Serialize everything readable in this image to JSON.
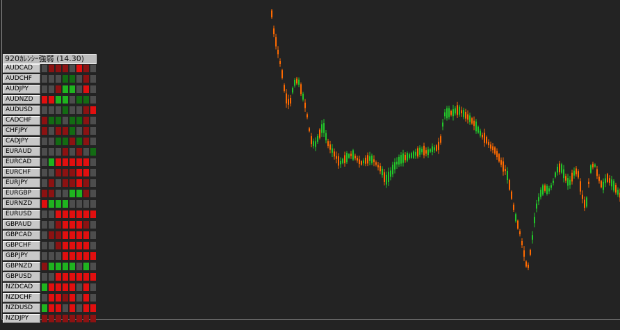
{
  "panel": {
    "title": "920ｶﾚﾝｼｰ強弱 (14.30)"
  },
  "colors": {
    "background": "#232323",
    "bullish": "#22c82a",
    "bearish": "#ff6a00",
    "cell_grey": "#4d4d4d",
    "cell_red": "#e10f0f",
    "cell_darkred": "#8c1212",
    "cell_green": "#1fb41f",
    "cell_darkgreen": "#136b13"
  },
  "strength_table": [
    {
      "pair": "AUDCAD",
      "cells": [
        "G",
        "DR",
        "DR",
        "DR",
        "G",
        "R",
        "DR",
        "G"
      ]
    },
    {
      "pair": "AUDCHF",
      "cells": [
        "G",
        "G",
        "G",
        "DG",
        "DG",
        "G",
        "DR",
        "G"
      ]
    },
    {
      "pair": "AUDJPY",
      "cells": [
        "G",
        "G",
        "DR",
        "LG",
        "LG",
        "G",
        "R",
        "G"
      ]
    },
    {
      "pair": "AUDNZD",
      "cells": [
        "R",
        "R",
        "LG",
        "LG",
        "G",
        "DG",
        "DG",
        "G"
      ]
    },
    {
      "pair": "AUDUSD",
      "cells": [
        "G",
        "G",
        "G",
        "DG",
        "G",
        "G",
        "DR",
        "R"
      ]
    },
    {
      "pair": "CADCHF",
      "cells": [
        "DR",
        "DG",
        "DG",
        "G",
        "DG",
        "DG",
        "DR",
        "G"
      ]
    },
    {
      "pair": "CHFJPY",
      "cells": [
        "DR",
        "G",
        "DR",
        "DR",
        "DG",
        "G",
        "DR",
        "G"
      ]
    },
    {
      "pair": "CADJPY",
      "cells": [
        "G",
        "G",
        "DG",
        "DG",
        "DR",
        "DG",
        "DR",
        "G"
      ]
    },
    {
      "pair": "EURAUD",
      "cells": [
        "G",
        "G",
        "G",
        "DR",
        "G",
        "DR",
        "G",
        "DG"
      ]
    },
    {
      "pair": "EURCAD",
      "cells": [
        "G",
        "LG",
        "R",
        "R",
        "R",
        "R",
        "R",
        "G"
      ]
    },
    {
      "pair": "EURCHF",
      "cells": [
        "G",
        "G",
        "DR",
        "DR",
        "DR",
        "R",
        "R",
        "G"
      ]
    },
    {
      "pair": "EURJPY",
      "cells": [
        "G",
        "DR",
        "G",
        "DR",
        "DR",
        "R",
        "DR",
        "G"
      ]
    },
    {
      "pair": "EURGBP",
      "cells": [
        "DR",
        "DR",
        "G",
        "G",
        "LG",
        "LG",
        "DR",
        "G"
      ]
    },
    {
      "pair": "EURNZD",
      "cells": [
        "R",
        "LG",
        "LG",
        "LG",
        "G",
        "G",
        "G",
        "G"
      ]
    },
    {
      "pair": "EURUSD",
      "cells": [
        "G",
        "G",
        "R",
        "R",
        "R",
        "R",
        "R",
        "R"
      ]
    },
    {
      "pair": "GBPAUD",
      "cells": [
        "G",
        "G",
        "DR",
        "R",
        "R",
        "R",
        "DR",
        "G"
      ]
    },
    {
      "pair": "GBPCAD",
      "cells": [
        "G",
        "DR",
        "DR",
        "R",
        "R",
        "R",
        "R",
        "G"
      ]
    },
    {
      "pair": "GBPCHF",
      "cells": [
        "G",
        "G",
        "DR",
        "R",
        "R",
        "R",
        "R",
        "G"
      ]
    },
    {
      "pair": "GBPJPY",
      "cells": [
        "G",
        "G",
        "G",
        "R",
        "R",
        "R",
        "R",
        "R"
      ]
    },
    {
      "pair": "GBPNZD",
      "cells": [
        "DR",
        "LG",
        "LG",
        "LG",
        "LG",
        "G",
        "LG",
        "G"
      ]
    },
    {
      "pair": "GBPUSD",
      "cells": [
        "G",
        "G",
        "R",
        "R",
        "R",
        "R",
        "R",
        "R"
      ]
    },
    {
      "pair": "NZDCAD",
      "cells": [
        "LG",
        "R",
        "R",
        "R",
        "R",
        "G",
        "R",
        "G"
      ]
    },
    {
      "pair": "NZDCHF",
      "cells": [
        "G",
        "R",
        "R",
        "DR",
        "R",
        "G",
        "R",
        "G"
      ]
    },
    {
      "pair": "NZDUSD",
      "cells": [
        "LG",
        "R",
        "R",
        "G",
        "R",
        "G",
        "R",
        "R"
      ]
    },
    {
      "pair": "NZDJPY",
      "cells": [
        "DR",
        "DR",
        "DR",
        "DR",
        "DR",
        "DR",
        "DR",
        "DR"
      ]
    }
  ]
}
